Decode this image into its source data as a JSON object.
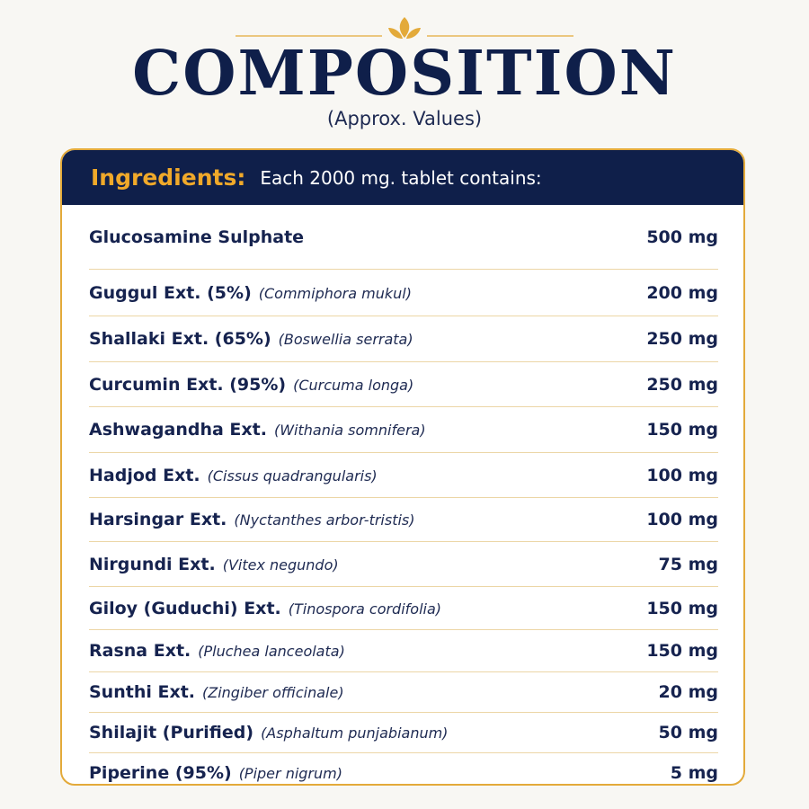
{
  "header": {
    "title": "COMPOSITION",
    "subtitle": "(Approx. Values)"
  },
  "colors": {
    "navy": "#0f1f4a",
    "gold": "#e3aa3a",
    "background": "#f8f7f3"
  },
  "table": {
    "header_label": "Ingredients:",
    "header_desc": "Each 2000 mg. tablet contains:",
    "rows": [
      {
        "name": "Glucosamine Sulphate",
        "scientific": "",
        "amount": "500 mg"
      },
      {
        "name": "Guggul Ext. (5%)",
        "scientific": "(Commiphora mukul)",
        "amount": "200 mg"
      },
      {
        "name": "Shallaki Ext. (65%)",
        "scientific": "(Boswellia serrata)",
        "amount": "250 mg"
      },
      {
        "name": "Curcumin Ext. (95%)",
        "scientific": "(Curcuma longa)",
        "amount": "250 mg"
      },
      {
        "name": "Ashwagandha Ext.",
        "scientific": "(Withania somnifera)",
        "amount": "150 mg"
      },
      {
        "name": "Hadjod Ext.",
        "scientific": "(Cissus quadrangularis)",
        "amount": "100 mg"
      },
      {
        "name": "Harsingar Ext.",
        "scientific": "(Nyctanthes arbor-tristis)",
        "amount": "100 mg"
      },
      {
        "name": "Nirgundi Ext.",
        "scientific": "(Vitex negundo)",
        "amount": "75 mg"
      },
      {
        "name": "Giloy (Guduchi) Ext.",
        "scientific": "(Tinospora cordifolia)",
        "amount": "150 mg"
      },
      {
        "name": "Rasna Ext.",
        "scientific": "(Pluchea lanceolata)",
        "amount": "150 mg"
      },
      {
        "name": "Sunthi Ext.",
        "scientific": "(Zingiber officinale)",
        "amount": "20 mg"
      },
      {
        "name": "Shilajit (Purified)",
        "scientific": "(Asphaltum punjabianum)",
        "amount": "50 mg"
      },
      {
        "name": "Piperine (95%)",
        "scientific": "(Piper nigrum)",
        "amount": "5 mg"
      }
    ]
  }
}
